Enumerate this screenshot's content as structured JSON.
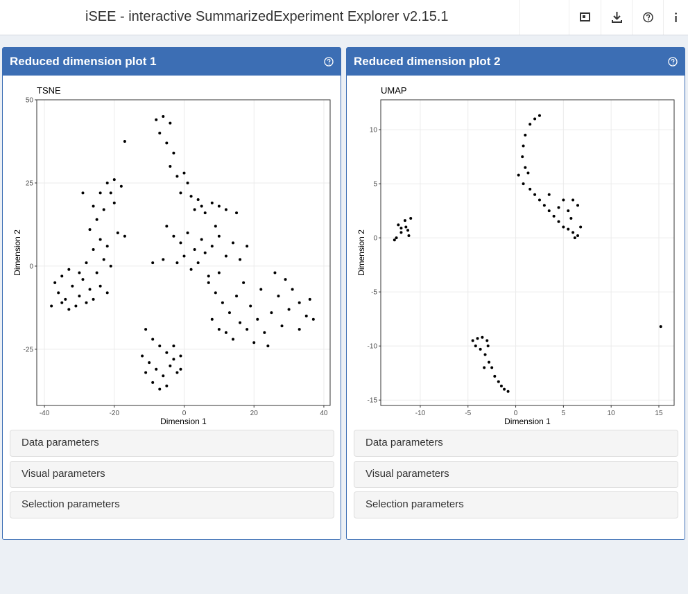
{
  "header": {
    "title": "iSEE - interactive SummarizedExperiment Explorer v2.15.1"
  },
  "panels": [
    {
      "title": "Reduced dimension plot 1",
      "chart_data": {
        "type": "scatter",
        "title": "TSNE",
        "x_label": "Dimension 1",
        "y_label": "Dimension 2",
        "color": "#000000",
        "grid": true,
        "xlim": [
          -42.2,
          41.8
        ],
        "ylim": [
          -41.9,
          50
        ],
        "xticks": [
          -40,
          -20,
          0,
          20,
          40
        ],
        "yticks": [
          -25,
          0,
          25,
          50
        ],
        "x": [
          -37,
          -35,
          -33,
          -36,
          -34,
          -32,
          -30,
          -31,
          -33,
          -29,
          -38,
          -35,
          -28,
          -27,
          -30,
          -26,
          -24,
          -22,
          -25,
          -23,
          -21,
          -26,
          -24,
          -22,
          -27,
          -25,
          -23,
          -20,
          -26,
          -24,
          -22,
          -20,
          -18,
          -21,
          -28,
          -19,
          -17,
          -29,
          -11,
          -9,
          -7,
          -5,
          -3,
          -1,
          -12,
          -10,
          -8,
          -6,
          -4,
          -2,
          -9,
          -7,
          -5,
          -11,
          -3,
          -1,
          -8,
          -6,
          -4,
          -7,
          -5,
          -3,
          -4,
          -2,
          0,
          1,
          -1,
          2,
          4,
          3,
          5,
          6,
          8,
          10,
          12,
          15,
          -5,
          -3,
          -1,
          1,
          3,
          5,
          -6,
          -2,
          0,
          2,
          4,
          6,
          8,
          10,
          12,
          14,
          16,
          18,
          10,
          7,
          9,
          -9,
          7,
          9,
          11,
          13,
          15,
          17,
          19,
          21,
          23,
          25,
          27,
          29,
          31,
          33,
          35,
          37,
          8,
          10,
          12,
          14,
          18,
          20,
          24,
          28,
          30,
          33,
          26,
          22,
          16,
          36,
          -17
        ],
        "y": [
          -5,
          -3,
          -1,
          -8,
          -10,
          -6,
          -9,
          -12,
          -13,
          -4,
          -12,
          -11,
          -11,
          -7,
          -2,
          -10,
          -6,
          -8,
          -2,
          2,
          0,
          5,
          8,
          6,
          11,
          14,
          17,
          19,
          18,
          22,
          25,
          26,
          24,
          22,
          1,
          10,
          9,
          22,
          -19,
          -22,
          -24,
          -26,
          -24,
          -27,
          -27,
          -29,
          -31,
          -33,
          -30,
          -32,
          -35,
          -37,
          -36,
          -32,
          -28,
          -31,
          44,
          45,
          43,
          40,
          37,
          34,
          30,
          27,
          28,
          25,
          22,
          21,
          20,
          17,
          18,
          16,
          19,
          18,
          17,
          16,
          12,
          9,
          7,
          10,
          5,
          8,
          2,
          1,
          3,
          -1,
          1,
          4,
          6,
          9,
          3,
          7,
          2,
          6,
          -2,
          -3,
          12,
          1,
          -5,
          -8,
          -11,
          -14,
          -9,
          -5,
          -12,
          -16,
          -20,
          -14,
          -9,
          -4,
          -7,
          -11,
          -15,
          -16,
          -16,
          -19,
          -20,
          -22,
          -19,
          -23,
          -24,
          -18,
          -13,
          -19,
          -2,
          -7,
          -17,
          -10,
          37.5
        ]
      },
      "sections": [
        "Data parameters",
        "Visual parameters",
        "Selection parameters"
      ]
    },
    {
      "title": "Reduced dimension plot 2",
      "chart_data": {
        "type": "scatter",
        "title": "UMAP",
        "x_label": "Dimension 1",
        "y_label": "Dimension 2",
        "color": "#000000",
        "grid": true,
        "xlim": [
          -14.14,
          16.6
        ],
        "ylim": [
          -15.5,
          12.76
        ],
        "xticks": [
          -10,
          -5,
          0,
          5,
          10,
          15
        ],
        "yticks": [
          -15,
          -10,
          -5,
          0,
          5,
          10
        ],
        "x": [
          -12.5,
          -12,
          -11.5,
          -11,
          -12.3,
          -11.2,
          -12.7,
          -11.6,
          -12,
          -11.3,
          2.5,
          2,
          1.5,
          1,
          0.8,
          0.7,
          1,
          1.3,
          0.3,
          0.8,
          1.5,
          2,
          2.5,
          3,
          3.5,
          4,
          4.5,
          5,
          5.5,
          6,
          6.5,
          5.5,
          6,
          6.5,
          5,
          6.8,
          5.8,
          4.5,
          3.5,
          6.2,
          -4.5,
          -4,
          -3.5,
          -3,
          -4.2,
          -3.7,
          -3.2,
          -2.8,
          -2.5,
          -2.2,
          -1.8,
          -1.5,
          -1.2,
          -0.8,
          -3.3,
          -2.9,
          15.2
        ],
        "y": [
          0,
          0.5,
          1,
          1.8,
          1.2,
          0.2,
          -0.2,
          1.6,
          0.9,
          0.7,
          11.3,
          11,
          10.5,
          9.5,
          8.5,
          7.5,
          6.5,
          6,
          5.8,
          5,
          4.5,
          4,
          3.5,
          3,
          2.5,
          2,
          1.5,
          1,
          0.8,
          0.5,
          0.2,
          2.5,
          3.5,
          3,
          3.5,
          1,
          1.8,
          2.8,
          4,
          0,
          -9.5,
          -9.3,
          -9.2,
          -9.5,
          -10,
          -10.3,
          -10.8,
          -11.5,
          -12,
          -12.8,
          -13.3,
          -13.7,
          -14,
          -14.2,
          -12,
          -10,
          -8.2
        ]
      },
      "sections": [
        "Data parameters",
        "Visual parameters",
        "Selection parameters"
      ]
    }
  ]
}
